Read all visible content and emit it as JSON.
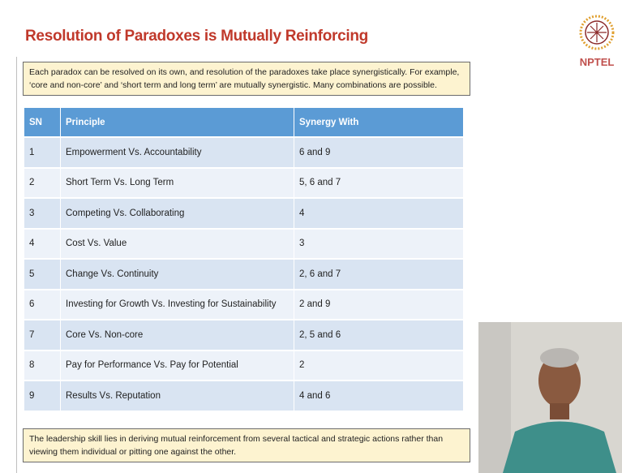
{
  "header": {
    "title": "Resolution of Paradoxes is Mutually Reinforcing",
    "logo": "NPTEL"
  },
  "intro": "Each paradox can be resolved on its own, and resolution of the paradoxes take place synergistically. For example, ‘core and non-core’ and ‘short term and long term’ are mutually synergistic. Many combinations are possible.",
  "table": {
    "columns": [
      "SN",
      "Principle",
      "Synergy With"
    ],
    "rows": [
      [
        "1",
        "Empowerment Vs. Accountability",
        "6 and 9"
      ],
      [
        "2",
        "Short Term Vs. Long Term",
        "5, 6 and 7"
      ],
      [
        "3",
        "Competing Vs. Collaborating",
        "4"
      ],
      [
        "4",
        "Cost Vs. Value",
        "3"
      ],
      [
        "5",
        "Change Vs. Continuity",
        "2, 6 and 7"
      ],
      [
        "6",
        "Investing for Growth Vs. Investing for Sustainability",
        "2 and 9"
      ],
      [
        "7",
        "Core Vs. Non-core",
        "2, 5 and 6"
      ],
      [
        "8",
        "Pay for Performance Vs. Pay for Potential",
        "2"
      ],
      [
        "9",
        "Results Vs. Reputation",
        "4 and 6"
      ]
    ]
  },
  "footer": "The leadership skill lies in deriving mutual reinforcement from several tactical and strategic actions rather than viewing them individual or pitting one against the other."
}
